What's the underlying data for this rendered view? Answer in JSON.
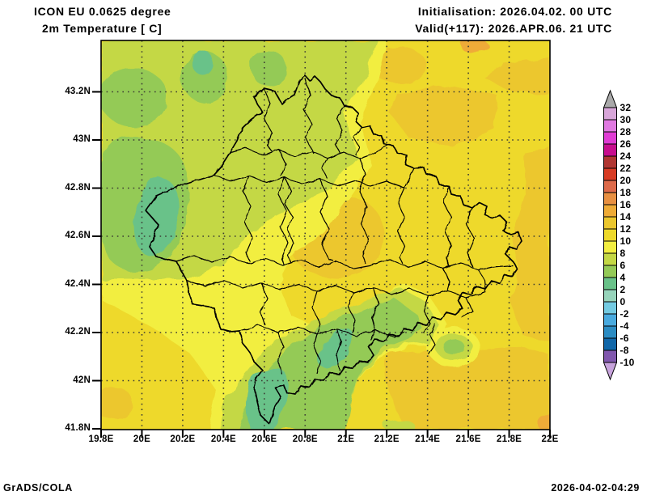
{
  "header": {
    "model_line": "ICON EU 0.0625 degree",
    "variable_line": "2m Temperature [ C]",
    "init_line": "Initialisation: 2026.04.02. 00 UTC",
    "valid_line": "Valid(+117): 2026.APR.06. 21 UTC"
  },
  "footer": {
    "left": "GrADS/COLA",
    "right": "2026-04-02-04:29"
  },
  "map": {
    "x_tick_labels": [
      "19.8E",
      "20E",
      "20.2E",
      "20.4E",
      "20.6E",
      "20.8E",
      "21E",
      "21.2E",
      "21.4E",
      "21.6E",
      "21.8E",
      "22E"
    ],
    "y_tick_labels": [
      "43.2N",
      "43N",
      "42.8N",
      "42.6N",
      "42.4N",
      "42.2N",
      "42N",
      "41.8N"
    ]
  },
  "colorbar": {
    "tick_labels": [
      "32",
      "30",
      "28",
      "26",
      "24",
      "22",
      "20",
      "18",
      "16",
      "14",
      "12",
      "10",
      "8",
      "6",
      "4",
      "2",
      "0",
      "-2",
      "-4",
      "-6",
      "-8",
      "-10"
    ],
    "segment_colors_top_to_bottom": [
      "#d8a6d9",
      "#e079e1",
      "#e03cd4",
      "#c70e8e",
      "#b03632",
      "#d83c24",
      "#de6a4a",
      "#e89042",
      "#efab37",
      "#ecc72e",
      "#eed92b",
      "#f2ee41",
      "#c4d845",
      "#94ca57",
      "#69c289",
      "#97d4bb",
      "#74cbe2",
      "#49aadf",
      "#2b8cc3",
      "#1167a9",
      "#8158ae"
    ],
    "above_max_color": "#a9a9a9",
    "below_min_color": "#c7a3dc"
  },
  "palette": {
    "t14_16": "#efab37",
    "t12_14": "#ecc72e",
    "t10_12": "#eed92b",
    "t8_10": "#f2ee41",
    "t6_8": "#c4d845",
    "t4_6": "#94ca57",
    "t2_4": "#69c289",
    "boundary": "#000000",
    "grid_dots": "#3c3c34",
    "frame": "#000000"
  },
  "chart_data": {
    "type": "heatmap",
    "title": "2m Temperature [ C]",
    "model": "ICON EU 0.0625 degree",
    "initialisation": "2026.04.02. 00 UTC",
    "valid": "2026.APR.06. 21 UTC",
    "forecast_hour": 117,
    "region": "Kosovo and surroundings",
    "lon_ticks_deg_e": [
      19.8,
      20.0,
      20.2,
      20.4,
      20.6,
      20.8,
      21.0,
      21.2,
      21.4,
      21.6,
      21.8,
      22.0
    ],
    "lat_ticks_deg_n": [
      41.8,
      42.0,
      42.2,
      42.4,
      42.6,
      42.8,
      43.0,
      43.2
    ],
    "colorbar_levels_c": [
      -10,
      -8,
      -6,
      -4,
      -2,
      0,
      2,
      4,
      6,
      8,
      10,
      12,
      14,
      16,
      18,
      20,
      22,
      24,
      26,
      28,
      30,
      32
    ],
    "units": "C",
    "grid": "dotted 0.2 degree",
    "legend_position": "right vertical colorbar with out-of-range arrows",
    "field_summary": [
      {
        "area": "northwest mountains (outside/NW of Kosovo)",
        "t2m_c": "4 to 8"
      },
      {
        "area": "west ridge spot (Rugova area)",
        "t2m_c": "2 to 4"
      },
      {
        "area": "western Kosovo plain",
        "t2m_c": "8 to 10"
      },
      {
        "area": "central valley patches",
        "t2m_c": "12 to 14"
      },
      {
        "area": "east and northeast lowlands",
        "t2m_c": "10 to 14"
      },
      {
        "area": "Sharr mountains band (south, incl. Dragash tip)",
        "t2m_c": "2 to 8"
      },
      {
        "area": "southeast map corner",
        "t2m_c": "14 to 16"
      }
    ]
  }
}
